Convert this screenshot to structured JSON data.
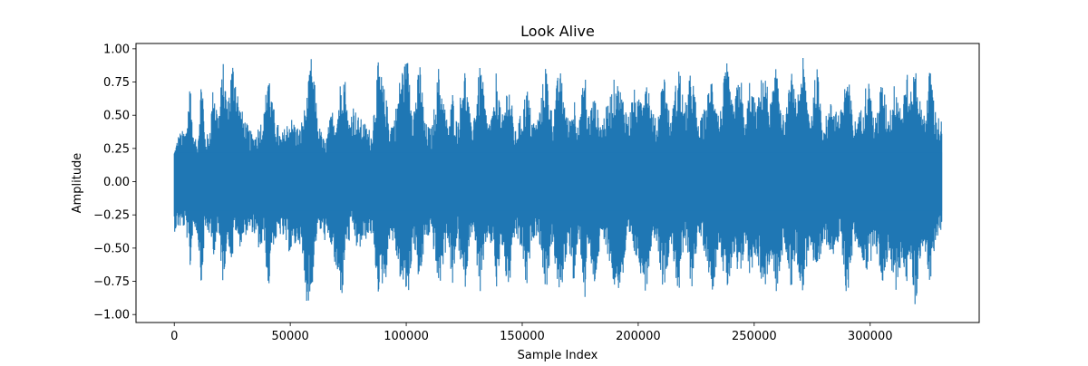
{
  "chart_data": {
    "type": "line",
    "title": "Look Alive",
    "xlabel": "Sample Index",
    "ylabel": "Amplitude",
    "xlim": [
      -16500,
      347000
    ],
    "ylim": [
      -1.06,
      1.04
    ],
    "x_ticks": [
      0,
      50000,
      100000,
      150000,
      200000,
      250000,
      300000
    ],
    "x_tick_labels": [
      "0",
      "50000",
      "100000",
      "150000",
      "200000",
      "250000",
      "300000"
    ],
    "y_ticks": [
      1.0,
      0.75,
      0.5,
      0.25,
      0.0,
      -0.25,
      -0.5,
      -0.75,
      -1.0
    ],
    "y_tick_labels": [
      "1.00",
      "0.75",
      "0.50",
      "0.25",
      "0.00",
      "−0.25",
      "−0.50",
      "−0.75",
      "−1.00"
    ],
    "grid": false,
    "series": [
      {
        "color": "#1f77b4",
        "sample_count": 331000,
        "envelope_x": [
          0,
          2000,
          5000,
          7000,
          8000,
          10000,
          12000,
          13000,
          15000,
          17000,
          19000,
          21000,
          23000,
          25000,
          26000,
          28000,
          31000,
          34000,
          37000,
          39000,
          40500,
          42000,
          46000,
          50000,
          54000,
          57000,
          59000,
          60500,
          62000,
          65000,
          68000,
          70000,
          72500,
          74000,
          75000,
          77000,
          79000,
          82000,
          85000,
          88000,
          91500,
          93000,
          95000,
          98000,
          101000,
          103000,
          106000,
          108000,
          111000,
          114000,
          118000,
          120000,
          122000,
          125000,
          128000,
          130000,
          132000,
          135000,
          138000,
          139000,
          141000,
          144000,
          147000,
          150000,
          152000,
          154000,
          156000,
          158000,
          160000,
          163000,
          166000,
          170000,
          172500,
          174500,
          177000,
          178000,
          181000,
          184000,
          187000,
          190000,
          193000,
          196000,
          198000,
          200000,
          203500,
          206000,
          208000,
          211000,
          214000,
          217500,
          220000,
          223000,
          226000,
          229000,
          232000,
          235000,
          238000,
          241000,
          244000,
          246000,
          248000,
          251000,
          254000,
          257000,
          260000,
          263000,
          266000,
          268000,
          271000,
          274000,
          277000,
          280000,
          284000,
          287000,
          290000,
          293000,
          296000,
          299000,
          302000,
          305000,
          308000,
          311000,
          314000,
          315500,
          317000,
          319500,
          322000,
          324000,
          326000,
          328000,
          331000
        ],
        "envelope_max": [
          0.25,
          0.37,
          0.4,
          0.82,
          0.35,
          0.3,
          0.91,
          0.38,
          0.35,
          0.78,
          0.5,
          0.91,
          0.62,
          0.93,
          0.92,
          0.6,
          0.45,
          0.35,
          0.45,
          0.55,
          0.95,
          0.62,
          0.35,
          0.5,
          0.4,
          0.62,
          0.94,
          0.75,
          0.45,
          0.3,
          0.55,
          0.5,
          0.92,
          0.75,
          0.45,
          0.6,
          0.5,
          0.45,
          0.38,
          0.92,
          0.62,
          0.45,
          0.5,
          0.88,
          0.94,
          0.55,
          0.92,
          0.45,
          0.4,
          0.88,
          0.42,
          0.68,
          0.44,
          0.92,
          0.42,
          0.62,
          0.92,
          0.45,
          0.57,
          0.92,
          0.45,
          0.8,
          0.38,
          0.55,
          0.74,
          0.5,
          0.45,
          0.6,
          0.93,
          0.5,
          0.88,
          0.45,
          0.65,
          0.44,
          0.9,
          0.5,
          0.65,
          0.45,
          0.6,
          0.8,
          0.68,
          0.5,
          0.72,
          0.6,
          0.88,
          0.55,
          0.45,
          0.87,
          0.45,
          0.92,
          0.55,
          0.88,
          0.42,
          0.58,
          0.85,
          0.48,
          0.92,
          0.55,
          0.88,
          0.4,
          0.78,
          0.55,
          0.88,
          0.6,
          0.92,
          0.42,
          0.85,
          0.6,
          0.94,
          0.5,
          0.88,
          0.45,
          0.65,
          0.5,
          0.88,
          0.45,
          0.55,
          0.82,
          0.45,
          0.78,
          0.5,
          0.8,
          0.55,
          0.94,
          0.6,
          0.94,
          0.55,
          0.55,
          0.92,
          0.55,
          0.45
        ],
        "envelope_min": [
          -0.38,
          -0.35,
          -0.35,
          -0.7,
          -0.35,
          -0.4,
          -0.85,
          -0.38,
          -0.4,
          -0.55,
          -0.4,
          -0.78,
          -0.42,
          -0.65,
          -0.35,
          -0.5,
          -0.4,
          -0.38,
          -0.55,
          -0.45,
          -0.9,
          -0.5,
          -0.4,
          -0.55,
          -0.45,
          -0.9,
          -0.92,
          -0.55,
          -0.35,
          -0.45,
          -0.5,
          -0.75,
          -0.88,
          -0.45,
          -0.5,
          -0.35,
          -0.55,
          -0.45,
          -0.4,
          -0.85,
          -0.72,
          -0.4,
          -0.5,
          -0.8,
          -0.88,
          -0.45,
          -0.82,
          -0.45,
          -0.4,
          -0.85,
          -0.42,
          -0.85,
          -0.42,
          -0.88,
          -0.35,
          -0.55,
          -0.88,
          -0.42,
          -0.55,
          -0.9,
          -0.45,
          -0.88,
          -0.4,
          -0.55,
          -0.87,
          -0.45,
          -0.4,
          -0.5,
          -0.88,
          -0.45,
          -0.93,
          -0.45,
          -0.85,
          -0.4,
          -0.92,
          -0.45,
          -0.82,
          -0.45,
          -0.55,
          -0.85,
          -0.78,
          -0.45,
          -0.55,
          -0.62,
          -0.85,
          -0.42,
          -0.45,
          -0.85,
          -0.45,
          -0.88,
          -0.45,
          -0.82,
          -0.4,
          -0.55,
          -0.85,
          -0.45,
          -0.88,
          -0.6,
          -0.82,
          -0.45,
          -0.72,
          -0.55,
          -0.85,
          -0.62,
          -0.88,
          -0.45,
          -0.82,
          -0.55,
          -0.88,
          -0.45,
          -0.85,
          -0.45,
          -0.55,
          -0.45,
          -0.9,
          -0.45,
          -0.55,
          -0.72,
          -0.45,
          -0.8,
          -0.55,
          -0.85,
          -0.55,
          -0.88,
          -0.55,
          -0.98,
          -0.5,
          -0.55,
          -0.85,
          -0.45,
          -0.35
        ]
      }
    ]
  }
}
